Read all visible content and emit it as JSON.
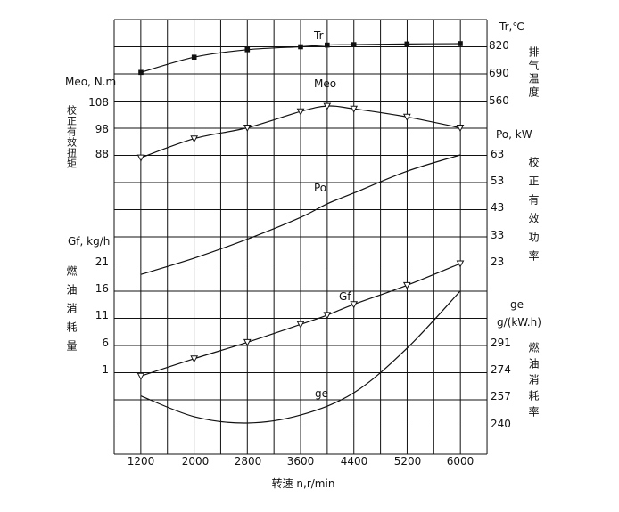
{
  "chart_data": {
    "type": "line",
    "xlabel": "转速 n,r/min",
    "x_ticks": [
      "1200",
      "2000",
      "2800",
      "3600",
      "4400",
      "5200",
      "6000"
    ],
    "axes": {
      "left_top": {
        "label": "Meo, N.m",
        "vertical_label": "校正有效扭矩",
        "ticks": [
          "108",
          "98",
          "88"
        ]
      },
      "left_bottom": {
        "label": "Gf, kg/h",
        "vertical_label": "燃油消耗量",
        "ticks": [
          "21",
          "16",
          "11",
          "6",
          "1"
        ]
      },
      "right_top": {
        "label": "Tr,℃",
        "vertical_label": "排气温度",
        "ticks": [
          "820",
          "690",
          "560"
        ]
      },
      "right_middle": {
        "label": "Po, kW",
        "vertical_label": "校正有效功率",
        "ticks": [
          "63",
          "53",
          "43",
          "33",
          "23"
        ]
      },
      "right_bottom": {
        "label_line1": "ge",
        "label_line2": "g/(kW.h)",
        "vertical_label": "燃油消耗率",
        "ticks": [
          "291",
          "274",
          "257",
          "240"
        ]
      }
    },
    "series": [
      {
        "name": "Tr",
        "unit": "℃",
        "marker": "square",
        "x": [
          1200,
          2000,
          2800,
          3600,
          4000,
          4400,
          5200,
          6000
        ],
        "y": [
          695,
          768,
          804,
          818,
          826,
          828,
          831,
          833
        ]
      },
      {
        "name": "Meo",
        "unit": "N.m",
        "marker": "triangle-down",
        "x": [
          1200,
          2000,
          2800,
          3600,
          4000,
          4400,
          5200,
          6000
        ],
        "y": [
          87,
          94,
          98,
          104,
          106,
          105,
          102,
          98
        ]
      },
      {
        "name": "Po",
        "unit": "kW",
        "x": [
          1200,
          2000,
          2800,
          3600,
          4000,
          4400,
          5200,
          6000
        ],
        "y": [
          19,
          25,
          32,
          40,
          45,
          49,
          57,
          63
        ]
      },
      {
        "name": "Gf",
        "unit": "kg/h",
        "marker": "triangle-down",
        "x": [
          1200,
          2000,
          2800,
          3600,
          4000,
          4400,
          5200,
          6000
        ],
        "y": [
          0.3,
          3.5,
          6.5,
          9.8,
          11.5,
          13.5,
          17,
          21
        ]
      },
      {
        "name": "ge",
        "unit": "g/(kW.h)",
        "x": [
          1200,
          2000,
          2800,
          3600,
          4400,
          5200,
          6000
        ],
        "y": [
          257,
          244,
          240,
          245,
          259,
          287,
          323
        ]
      }
    ],
    "grid": true
  }
}
